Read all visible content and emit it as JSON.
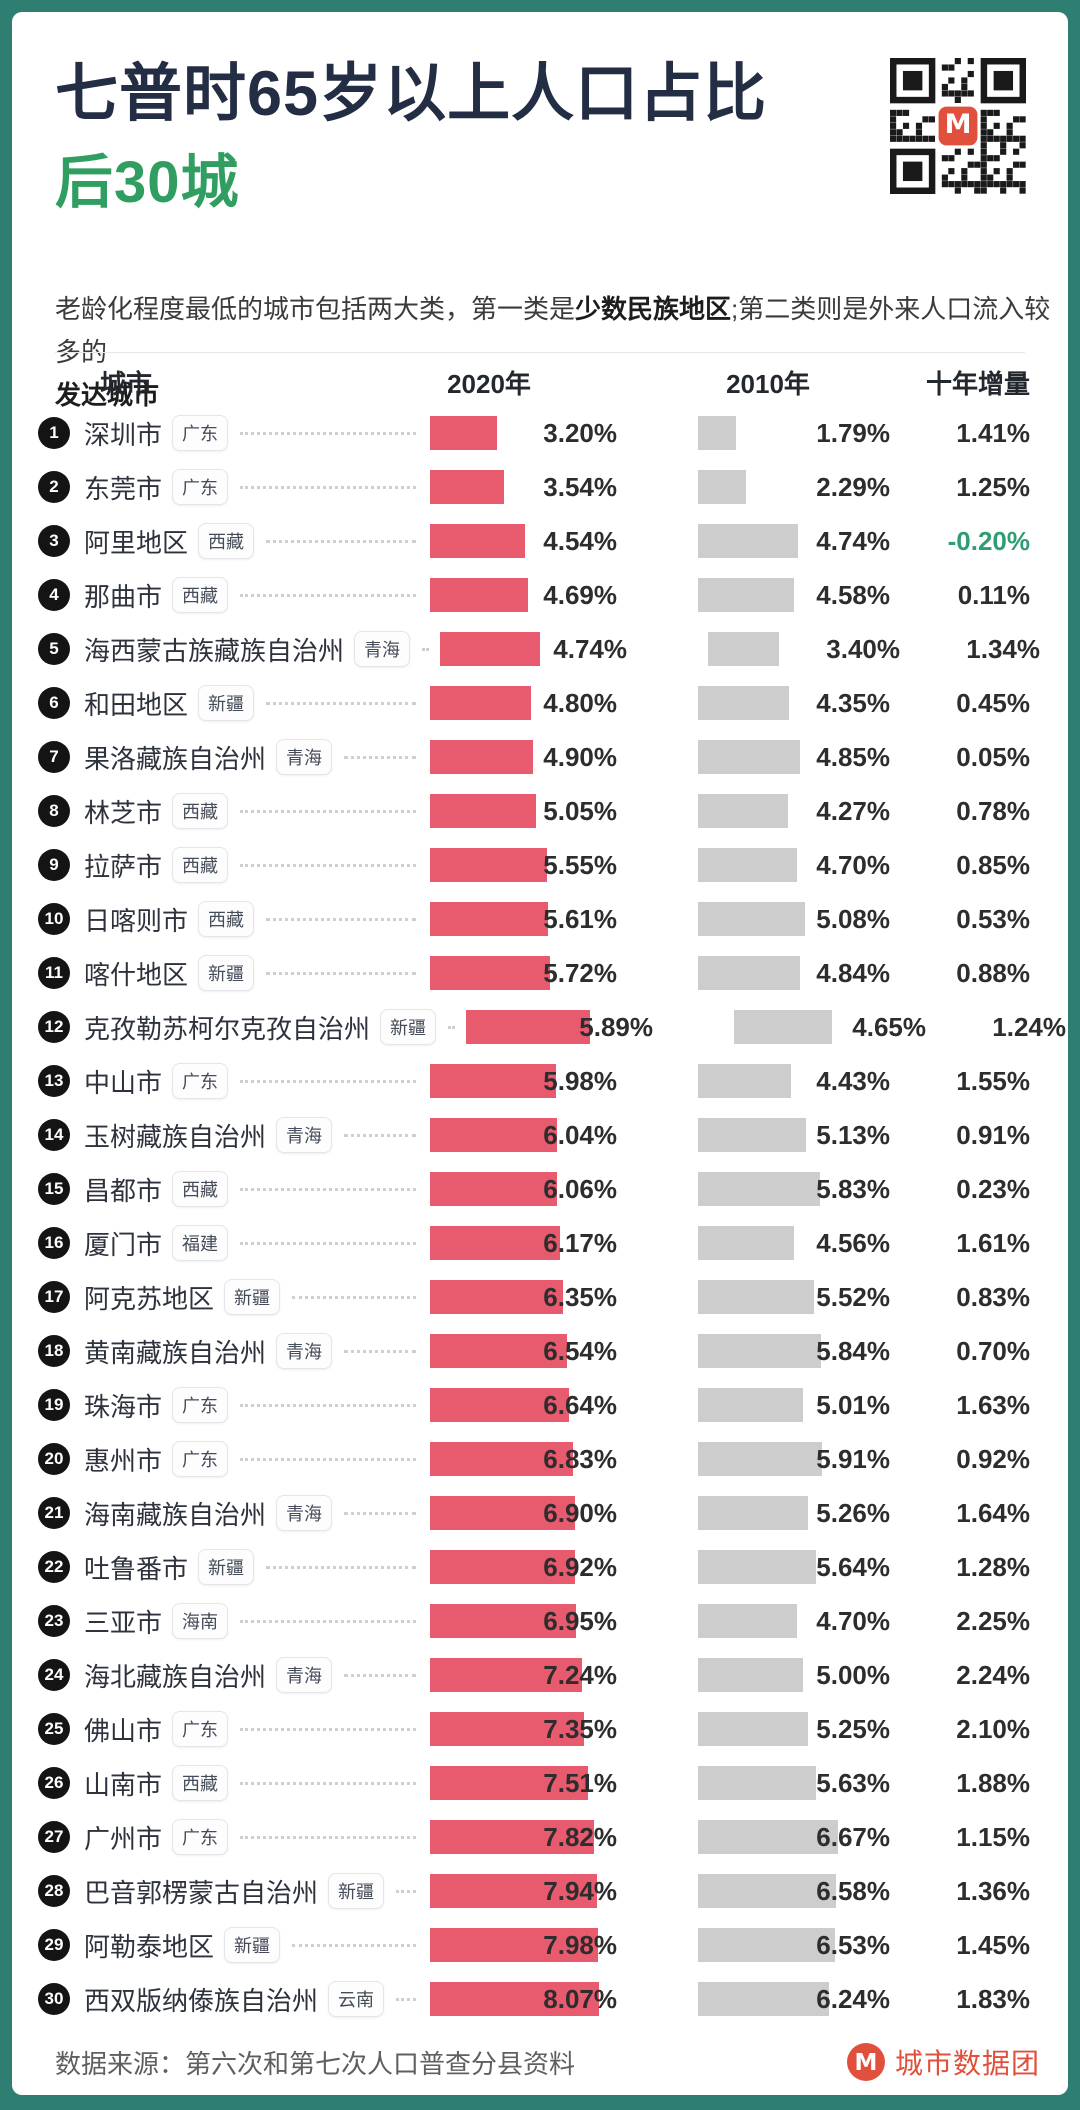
{
  "header": {
    "title_line1": "七普时65岁以上人口占比",
    "title_line2": "后30城"
  },
  "intro": {
    "lines": [
      [
        {
          "t": "老龄化程度最低的城市包括两大类，第一类是",
          "b": false
        },
        {
          "t": "少数民族地区",
          "b": true
        },
        {
          "t": ";第二类则是外来人口流入较多的",
          "b": false
        }
      ],
      [
        {
          "t": "发达城市",
          "b": true
        }
      ]
    ]
  },
  "table": {
    "columns": [
      "城市",
      "2020年",
      "2010年",
      "十年增量"
    ]
  },
  "chart_data": {
    "type": "bar",
    "title": "七普时65岁以上人口占比 后30城",
    "unit": "%",
    "xlim": [
      0,
      8.5
    ],
    "legend_position": "column-headers",
    "categories": [
      "深圳市",
      "东莞市",
      "阿里地区",
      "那曲市",
      "海西蒙古族藏族自治州",
      "和田地区",
      "果洛藏族自治州",
      "林芝市",
      "拉萨市",
      "日喀则市",
      "喀什地区",
      "克孜勒苏柯尔克孜自治州",
      "中山市",
      "玉树藏族自治州",
      "昌都市",
      "厦门市",
      "阿克苏地区",
      "黄南藏族自治州",
      "珠海市",
      "惠州市",
      "海南藏族自治州",
      "吐鲁番市",
      "三亚市",
      "海北藏族自治州",
      "佛山市",
      "山南市",
      "广州市",
      "巴音郭楞蒙古自治州",
      "阿勒泰地区",
      "西双版纳傣族自治州"
    ],
    "provinces": [
      "广东",
      "广东",
      "西藏",
      "西藏",
      "青海",
      "新疆",
      "青海",
      "西藏",
      "西藏",
      "西藏",
      "新疆",
      "新疆",
      "广东",
      "青海",
      "西藏",
      "福建",
      "新疆",
      "青海",
      "广东",
      "广东",
      "青海",
      "新疆",
      "海南",
      "青海",
      "广东",
      "西藏",
      "广东",
      "新疆",
      "新疆",
      "云南"
    ],
    "series": [
      {
        "name": "2020年",
        "color": "#e85a6e",
        "values": [
          3.2,
          3.54,
          4.54,
          4.69,
          4.74,
          4.8,
          4.9,
          5.05,
          5.55,
          5.61,
          5.72,
          5.89,
          5.98,
          6.04,
          6.06,
          6.17,
          6.35,
          6.54,
          6.64,
          6.83,
          6.9,
          6.92,
          6.95,
          7.24,
          7.35,
          7.51,
          7.82,
          7.94,
          7.98,
          8.07
        ]
      },
      {
        "name": "2010年",
        "color": "#cdcdcd",
        "values": [
          1.79,
          2.29,
          4.74,
          4.58,
          3.4,
          4.35,
          4.85,
          4.27,
          4.7,
          5.08,
          4.84,
          4.65,
          4.43,
          5.13,
          5.83,
          4.56,
          5.52,
          5.84,
          5.01,
          5.91,
          5.26,
          5.64,
          4.7,
          5.0,
          5.25,
          5.63,
          6.67,
          6.58,
          6.53,
          6.24
        ]
      }
    ],
    "increments": [
      1.41,
      1.25,
      -0.2,
      0.11,
      1.34,
      0.45,
      0.05,
      0.78,
      0.85,
      0.53,
      0.88,
      1.24,
      1.55,
      0.91,
      0.23,
      1.61,
      0.83,
      0.7,
      1.63,
      0.92,
      1.64,
      1.28,
      2.25,
      2.24,
      2.1,
      1.88,
      1.15,
      1.36,
      1.45,
      1.83
    ]
  },
  "footer": {
    "source": "数据来源：第六次和第七次人口普查分县资料",
    "brand": "城市数据团"
  },
  "colors": {
    "frame": "#2e7e71",
    "title": "#232d43",
    "title_highlight": "#2f9e60",
    "bar_2020": "#e85a6e",
    "bar_2010": "#cdcdcd",
    "negative_increment": "#2e9e72",
    "brand_red": "#e0503c",
    "rank_circle": "#141414"
  }
}
